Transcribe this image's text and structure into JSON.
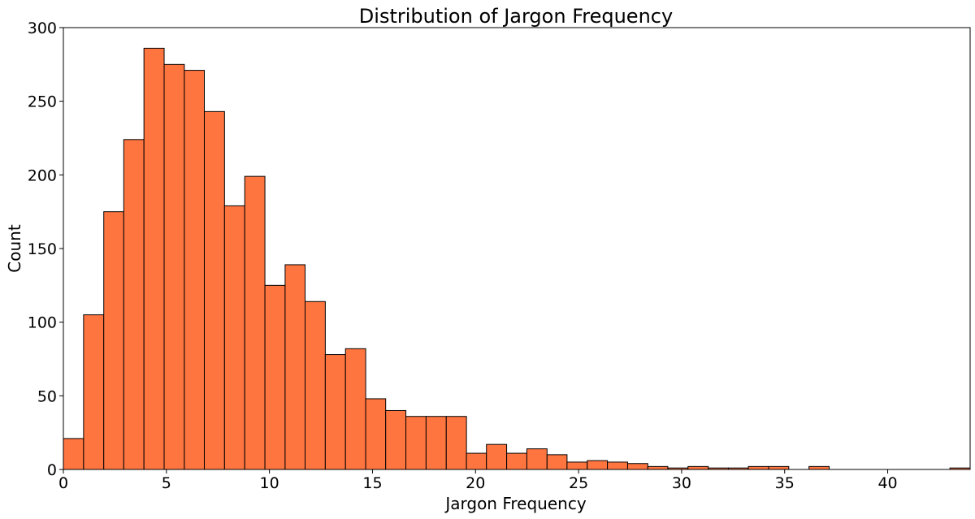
{
  "chart_data": {
    "type": "bar",
    "title": "Distribution of Jargon Frequency",
    "xlabel": "Jargon Frequency",
    "ylabel": "Count",
    "xlim": [
      0,
      44
    ],
    "ylim": [
      0,
      300
    ],
    "xticks": [
      0,
      5,
      10,
      15,
      20,
      25,
      30,
      35,
      40
    ],
    "yticks": [
      0,
      50,
      100,
      150,
      200,
      250,
      300
    ],
    "bar_color": "#ff7540",
    "bar_edge_color": "#000000",
    "bins": [
      {
        "x0": 0.0,
        "x1": 0.98,
        "count": 21
      },
      {
        "x0": 0.98,
        "x1": 1.96,
        "count": 105
      },
      {
        "x0": 1.96,
        "x1": 2.93,
        "count": 175
      },
      {
        "x0": 2.93,
        "x1": 3.91,
        "count": 224
      },
      {
        "x0": 3.91,
        "x1": 4.89,
        "count": 286
      },
      {
        "x0": 4.89,
        "x1": 5.87,
        "count": 275
      },
      {
        "x0": 5.87,
        "x1": 6.84,
        "count": 271
      },
      {
        "x0": 6.84,
        "x1": 7.82,
        "count": 243
      },
      {
        "x0": 7.82,
        "x1": 8.8,
        "count": 179
      },
      {
        "x0": 8.8,
        "x1": 9.78,
        "count": 199
      },
      {
        "x0": 9.78,
        "x1": 10.76,
        "count": 125
      },
      {
        "x0": 10.76,
        "x1": 11.73,
        "count": 139
      },
      {
        "x0": 11.73,
        "x1": 12.71,
        "count": 114
      },
      {
        "x0": 12.71,
        "x1": 13.69,
        "count": 78
      },
      {
        "x0": 13.69,
        "x1": 14.67,
        "count": 82
      },
      {
        "x0": 14.67,
        "x1": 15.64,
        "count": 48
      },
      {
        "x0": 15.64,
        "x1": 16.62,
        "count": 40
      },
      {
        "x0": 16.62,
        "x1": 17.6,
        "count": 36
      },
      {
        "x0": 17.6,
        "x1": 18.58,
        "count": 36
      },
      {
        "x0": 18.58,
        "x1": 19.56,
        "count": 36
      },
      {
        "x0": 19.56,
        "x1": 20.53,
        "count": 11
      },
      {
        "x0": 20.53,
        "x1": 21.51,
        "count": 17
      },
      {
        "x0": 21.51,
        "x1": 22.49,
        "count": 11
      },
      {
        "x0": 22.49,
        "x1": 23.47,
        "count": 14
      },
      {
        "x0": 23.47,
        "x1": 24.44,
        "count": 10
      },
      {
        "x0": 24.44,
        "x1": 25.42,
        "count": 5
      },
      {
        "x0": 25.42,
        "x1": 26.4,
        "count": 6
      },
      {
        "x0": 26.4,
        "x1": 27.38,
        "count": 5
      },
      {
        "x0": 27.38,
        "x1": 28.36,
        "count": 4
      },
      {
        "x0": 28.36,
        "x1": 29.33,
        "count": 2
      },
      {
        "x0": 29.33,
        "x1": 30.31,
        "count": 1
      },
      {
        "x0": 30.31,
        "x1": 31.29,
        "count": 2
      },
      {
        "x0": 31.29,
        "x1": 32.27,
        "count": 1
      },
      {
        "x0": 32.27,
        "x1": 33.24,
        "count": 1
      },
      {
        "x0": 33.24,
        "x1": 34.22,
        "count": 2
      },
      {
        "x0": 34.22,
        "x1": 35.2,
        "count": 2
      },
      {
        "x0": 36.18,
        "x1": 37.16,
        "count": 2
      },
      {
        "x0": 43.02,
        "x1": 44.0,
        "count": 1
      }
    ]
  }
}
